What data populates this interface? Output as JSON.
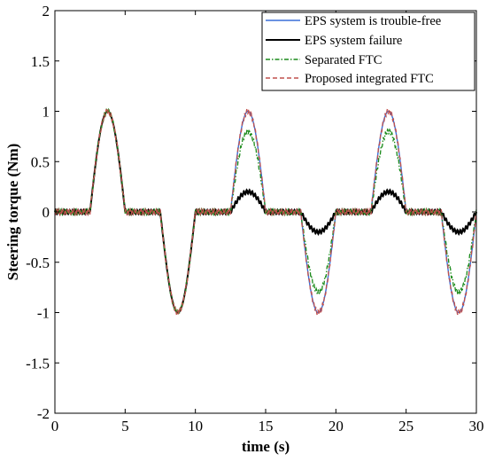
{
  "chart_data": {
    "type": "line",
    "title": "",
    "xlabel": "time (s)",
    "ylabel": "Steering torque (Nm)",
    "xlim": [
      0,
      30
    ],
    "ylim": [
      -2,
      2
    ],
    "xticks": [
      0,
      5,
      10,
      15,
      20,
      25,
      30
    ],
    "yticks": [
      -2,
      -1.5,
      -1,
      -0.5,
      0,
      0.5,
      1,
      1.5,
      2
    ],
    "grid": false,
    "legend_position": "top-right",
    "series": [
      {
        "name": "EPS system is trouble-free",
        "color": "#3a6fd8",
        "style": "solid"
      },
      {
        "name": "EPS system failure",
        "color": "#000000",
        "style": "solid"
      },
      {
        "name": "Separated FTC",
        "color": "#1a8a1a",
        "style": "dash-dot"
      },
      {
        "name": "Proposed integrated FTC",
        "color": "#c0504d",
        "style": "dashed"
      }
    ],
    "segments": [
      {
        "start": 0,
        "end": 2.5,
        "shape": "flat",
        "amplitude": {
          "trouble_free": 0,
          "failure": 0,
          "separated": 0,
          "integrated": 0
        }
      },
      {
        "start": 2.5,
        "end": 5.0,
        "shape": "hump",
        "amplitude": {
          "trouble_free": 1.0,
          "failure": 1.0,
          "separated": 1.0,
          "integrated": 1.0
        }
      },
      {
        "start": 5.0,
        "end": 7.5,
        "shape": "flat",
        "amplitude": {
          "trouble_free": 0,
          "failure": 0,
          "separated": 0,
          "integrated": 0
        }
      },
      {
        "start": 7.5,
        "end": 10.0,
        "shape": "hump",
        "amplitude": {
          "trouble_free": -1.0,
          "failure": -1.0,
          "separated": -1.0,
          "integrated": -1.0
        }
      },
      {
        "start": 10.0,
        "end": 12.5,
        "shape": "flat",
        "amplitude": {
          "trouble_free": 0,
          "failure": 0,
          "separated": 0,
          "integrated": 0
        }
      },
      {
        "start": 12.5,
        "end": 15.0,
        "shape": "hump",
        "amplitude": {
          "trouble_free": 1.0,
          "failure": 0.2,
          "separated": 0.8,
          "integrated": 1.0
        }
      },
      {
        "start": 15.0,
        "end": 17.5,
        "shape": "flat",
        "amplitude": {
          "trouble_free": 0,
          "failure": 0,
          "separated": 0,
          "integrated": 0
        }
      },
      {
        "start": 17.5,
        "end": 20.0,
        "shape": "hump",
        "amplitude": {
          "trouble_free": -1.0,
          "failure": -0.2,
          "separated": -0.8,
          "integrated": -1.0
        }
      },
      {
        "start": 20.0,
        "end": 22.5,
        "shape": "flat",
        "amplitude": {
          "trouble_free": 0,
          "failure": 0,
          "separated": 0,
          "integrated": 0
        }
      },
      {
        "start": 22.5,
        "end": 25.0,
        "shape": "hump",
        "amplitude": {
          "trouble_free": 1.0,
          "failure": 0.2,
          "separated": 0.8,
          "integrated": 1.0
        }
      },
      {
        "start": 25.0,
        "end": 27.5,
        "shape": "flat",
        "amplitude": {
          "trouble_free": 0,
          "failure": 0,
          "separated": 0,
          "integrated": 0
        }
      },
      {
        "start": 27.5,
        "end": 30.0,
        "shape": "hump",
        "amplitude": {
          "trouble_free": -1.0,
          "failure": -0.2,
          "separated": -0.8,
          "integrated": -1.0
        }
      }
    ]
  }
}
